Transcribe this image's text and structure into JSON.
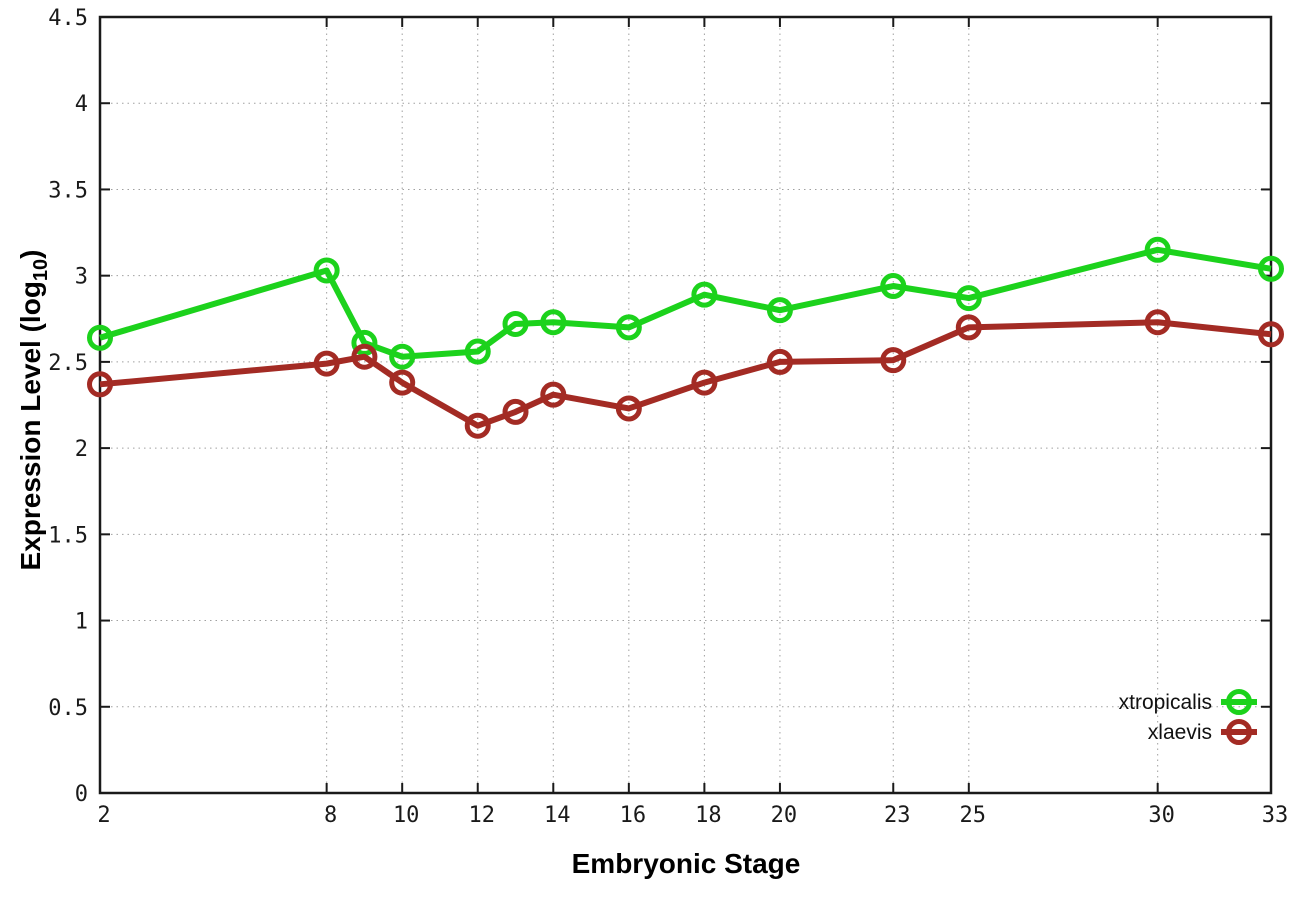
{
  "figure": {
    "background": "#ffffff"
  },
  "chart_data": {
    "type": "line",
    "title": "",
    "xlabel": "Embryonic Stage",
    "ylabel": {
      "prefix": "Expression Level (log",
      "sub": "10",
      "suffix": ")"
    },
    "xlim": [
      2,
      33
    ],
    "ylim": [
      0,
      4.5
    ],
    "x_tick_values": [
      2,
      8,
      10,
      12,
      14,
      16,
      18,
      20,
      23,
      25,
      30,
      33
    ],
    "x_tick_labels": [
      "2",
      "8",
      "10",
      "12",
      "14",
      "16",
      "18",
      "20",
      "23",
      "25",
      "30",
      "33"
    ],
    "y_tick_values": [
      0,
      0.5,
      1,
      1.5,
      2,
      2.5,
      3,
      3.5,
      4,
      4.5
    ],
    "y_tick_labels": [
      "0",
      "0.5",
      "1",
      "1.5",
      "2",
      "2.5",
      "3",
      "3.5",
      "4",
      "4.5"
    ],
    "grid": true,
    "legend_position": "bottom-right",
    "x": [
      2,
      8,
      9,
      10,
      12,
      13,
      14,
      16,
      18,
      20,
      23,
      25,
      30,
      33
    ],
    "series": [
      {
        "name": "xtropicalis",
        "color": "#1cd21c",
        "values": [
          2.64,
          3.03,
          2.61,
          2.53,
          2.56,
          2.72,
          2.73,
          2.7,
          2.89,
          2.8,
          2.94,
          2.87,
          3.15,
          3.04
        ]
      },
      {
        "name": "xlaevis",
        "color": "#a32b24",
        "values": [
          2.37,
          2.49,
          2.53,
          2.38,
          2.13,
          2.21,
          2.31,
          2.23,
          2.38,
          2.5,
          2.51,
          2.7,
          2.73,
          2.66
        ]
      }
    ],
    "style": {
      "axis_color": "#1a1a1a",
      "grid_color": "#a0a0a0",
      "tick_label_color": "#1a1a1a"
    }
  }
}
